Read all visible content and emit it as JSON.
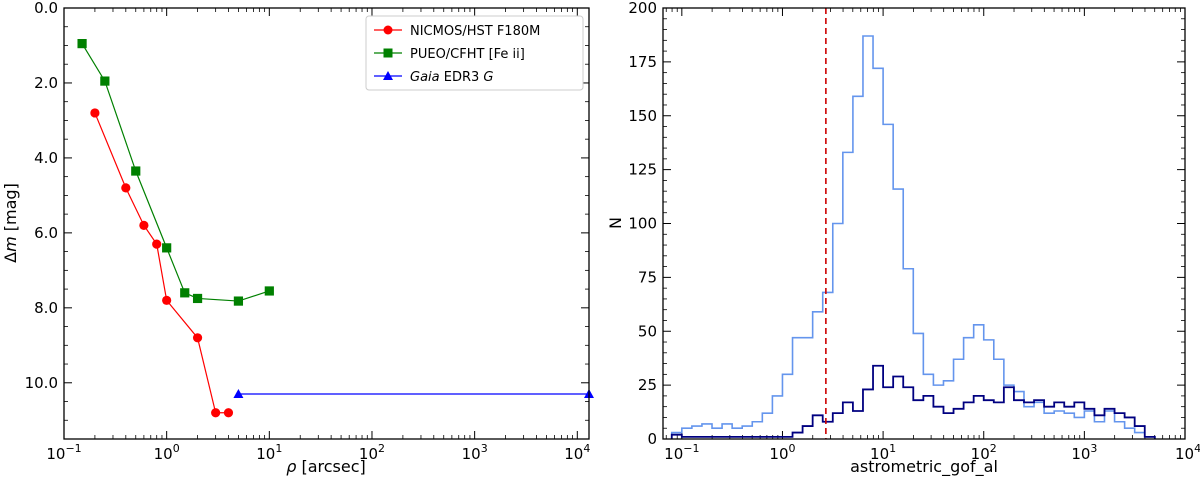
{
  "chart_data": [
    {
      "type": "line",
      "xlabel": "ρ [arcsec]",
      "ylabel": "Δm [mag]",
      "xscale": "log",
      "xlim": [
        0.1,
        13000
      ],
      "ylim": [
        11.5,
        0.0
      ],
      "y_inverted": true,
      "grid": false,
      "legend_position": "top-right",
      "x_ticks": [
        {
          "value": 0.1,
          "base": "10",
          "exp": "−1"
        },
        {
          "value": 1,
          "base": "10",
          "exp": "0"
        },
        {
          "value": 10,
          "base": "10",
          "exp": "1"
        },
        {
          "value": 100,
          "base": "10",
          "exp": "2"
        },
        {
          "value": 1000,
          "base": "10",
          "exp": "3"
        },
        {
          "value": 10000,
          "base": "10",
          "exp": "4"
        }
      ],
      "y_ticks": [
        {
          "value": 0,
          "label": "0.0"
        },
        {
          "value": 2,
          "label": "2.0"
        },
        {
          "value": 4,
          "label": "4.0"
        },
        {
          "value": 6,
          "label": "6.0"
        },
        {
          "value": 8,
          "label": "8.0"
        },
        {
          "value": 10,
          "label": "10.0"
        }
      ],
      "series": [
        {
          "name": "NICMOS/HST F180M",
          "color": "#ff0000",
          "marker": "circle",
          "x": [
            0.2,
            0.4,
            0.6,
            0.8,
            1.0,
            2.0,
            3.0,
            4.0
          ],
          "y": [
            2.8,
            4.8,
            5.8,
            6.3,
            7.8,
            8.8,
            10.8,
            10.8
          ]
        },
        {
          "name": "PUEO/CFHT [Fe ii]",
          "color": "#008000",
          "marker": "square",
          "x": [
            0.15,
            0.25,
            0.5,
            1.0,
            1.5,
            2.0,
            5.0,
            10.0
          ],
          "y": [
            0.95,
            1.95,
            4.35,
            6.4,
            7.6,
            7.75,
            7.82,
            7.55
          ]
        },
        {
          "name_italic": "Gaia",
          "name_rest": " EDR3 ",
          "name_italic2": "G",
          "color": "#0000ff",
          "marker": "triangle",
          "x": [
            5.0,
            13000
          ],
          "y": [
            10.3,
            10.3
          ]
        }
      ]
    },
    {
      "type": "histogram",
      "xlabel": "astrometric_gof_al",
      "ylabel": "N",
      "xscale": "log",
      "xlim": [
        0.065,
        10000
      ],
      "ylim": [
        0,
        200
      ],
      "grid": false,
      "vline": {
        "x": 2.7,
        "color": "#cc0000",
        "style": "dashed"
      },
      "x_ticks": [
        {
          "value": 0.1,
          "base": "10",
          "exp": "−1"
        },
        {
          "value": 1,
          "base": "10",
          "exp": "0"
        },
        {
          "value": 10,
          "base": "10",
          "exp": "1"
        },
        {
          "value": 100,
          "base": "10",
          "exp": "2"
        },
        {
          "value": 1000,
          "base": "10",
          "exp": "3"
        },
        {
          "value": 10000,
          "base": "10",
          "exp": "4"
        }
      ],
      "y_ticks": [
        {
          "value": 0,
          "label": "0"
        },
        {
          "value": 25,
          "label": "25"
        },
        {
          "value": 50,
          "label": "50"
        },
        {
          "value": 75,
          "label": "75"
        },
        {
          "value": 100,
          "label": "100"
        },
        {
          "value": 125,
          "label": "125"
        },
        {
          "value": 150,
          "label": "150"
        },
        {
          "value": 175,
          "label": "175"
        },
        {
          "value": 200,
          "label": "200"
        }
      ],
      "bin_edges_log10": [
        -1.1,
        -1.0,
        -0.9,
        -0.8,
        -0.7,
        -0.6,
        -0.5,
        -0.4,
        -0.3,
        -0.2,
        -0.1,
        0.0,
        0.1,
        0.2,
        0.3,
        0.4,
        0.5,
        0.6,
        0.7,
        0.8,
        0.9,
        1.0,
        1.1,
        1.2,
        1.3,
        1.4,
        1.5,
        1.6,
        1.7,
        1.8,
        1.9,
        2.0,
        2.1,
        2.2,
        2.3,
        2.4,
        2.5,
        2.6,
        2.7,
        2.8,
        2.9,
        3.0,
        3.1,
        3.2,
        3.3,
        3.4,
        3.5,
        3.6,
        3.7
      ],
      "series": [
        {
          "color": "#6495ed",
          "counts": [
            3,
            5,
            6,
            7,
            5,
            7,
            5,
            6,
            8,
            12,
            20,
            30,
            47,
            47,
            59,
            68,
            100,
            133,
            159,
            187,
            172,
            146,
            116,
            79,
            49,
            30,
            25,
            27,
            37,
            47,
            53,
            46,
            37,
            25,
            22,
            15,
            17,
            12,
            13,
            12,
            10,
            13,
            8,
            13,
            8,
            5,
            3,
            1
          ]
        },
        {
          "color": "#000080",
          "counts": [
            2,
            1,
            1,
            1,
            1,
            1,
            1,
            1,
            1,
            1,
            1,
            1,
            3,
            6,
            11,
            8,
            12,
            17,
            13,
            23,
            34,
            24,
            29,
            24,
            18,
            20,
            15,
            12,
            14,
            17,
            20,
            18,
            17,
            24,
            18,
            17,
            18,
            15,
            17,
            15,
            17,
            14,
            11,
            14,
            12,
            10,
            6,
            1
          ]
        }
      ]
    }
  ]
}
